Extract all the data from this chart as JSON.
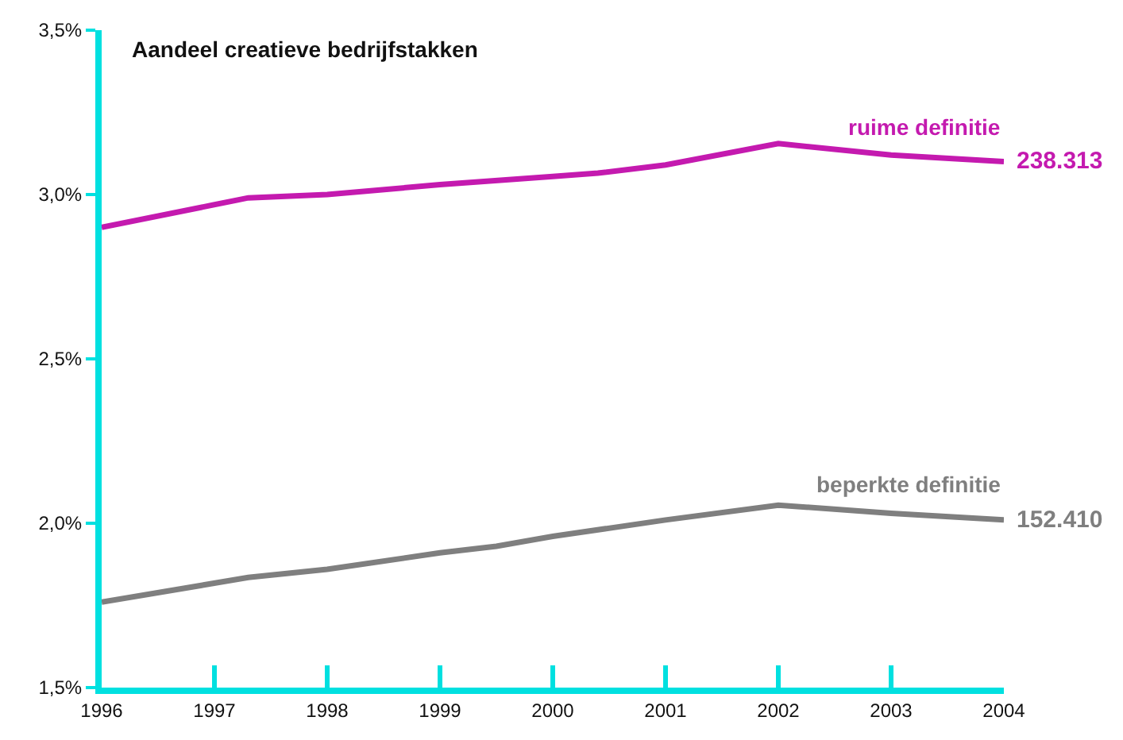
{
  "chart_data": {
    "type": "line",
    "title": "Aandeel creatieve bedrijfstakken",
    "series": [
      {
        "name": "ruime definitie",
        "color": "#c41aaf",
        "x": [
          1996,
          1997.3,
          1998,
          1999,
          2000,
          2000.4,
          2001,
          2002,
          2003,
          2004
        ],
        "values": [
          2.9,
          2.99,
          3.0,
          3.03,
          3.055,
          3.065,
          3.09,
          3.155,
          3.12,
          3.1
        ]
      },
      {
        "name": "beperkte definitie",
        "color": "#7f7f7f",
        "x": [
          1996,
          1997.3,
          1998,
          1999,
          1999.5,
          2000,
          2001,
          2002,
          2003,
          2004
        ],
        "values": [
          1.76,
          1.835,
          1.86,
          1.91,
          1.93,
          1.96,
          2.01,
          2.055,
          2.03,
          2.01
        ]
      }
    ],
    "annotations": [
      {
        "text": "238.313",
        "x": 2004,
        "y": 3.1
      },
      {
        "text": "152.410",
        "x": 2004,
        "y": 2.01
      }
    ],
    "xlim": [
      1996,
      2004
    ],
    "xticks": [
      1996,
      1997,
      1998,
      1999,
      2000,
      2001,
      2002,
      2003,
      2004
    ],
    "ylim": [
      1.5,
      3.5
    ],
    "yticks": [
      {
        "value": 1.5,
        "label": "1,5%"
      },
      {
        "value": 2.0,
        "label": "2,0%"
      },
      {
        "value": 2.5,
        "label": "2,5%"
      },
      {
        "value": 3.0,
        "label": "3,0%"
      },
      {
        "value": 3.5,
        "label": "3,5%"
      }
    ],
    "legend": false,
    "marker": "none",
    "line_style": "solid"
  }
}
